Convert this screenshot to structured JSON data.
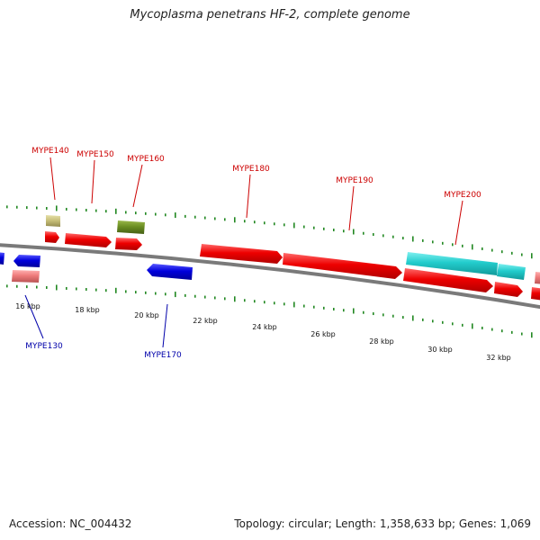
{
  "title": "Mycoplasma penetrans HF-2, complete genome",
  "footer": {
    "accession": "Accession: NC_004432",
    "summary": "Topology: circular; Length: 1,358,633 bp; Genes: 1,069"
  },
  "colors": {
    "backbone": "#7a7a7a",
    "tick": "#228822",
    "red_gene": "#ee0000",
    "blue_gene": "#0000dd",
    "cyan_gene": "#22cccc",
    "pink_gene": "#ee7a7a",
    "khaki_gene": "#c8c07a",
    "olive_gene": "#6b8e23",
    "label_red": "#cc0000",
    "label_blue": "#0000aa"
  },
  "scale_labels": [
    "16 kbp",
    "18 kbp",
    "20 kbp",
    "22 kbp",
    "24 kbp",
    "26 kbp",
    "28 kbp",
    "30 kbp",
    "32 kbp"
  ],
  "gene_labels": [
    {
      "text": "MYPE140",
      "strand": "forward"
    },
    {
      "text": "MYPE150",
      "strand": "forward"
    },
    {
      "text": "MYPE160",
      "strand": "forward"
    },
    {
      "text": "MYPE180",
      "strand": "forward"
    },
    {
      "text": "MYPE190",
      "strand": "forward"
    },
    {
      "text": "MYPE200",
      "strand": "forward"
    },
    {
      "text": "MYPE130",
      "strand": "reverse"
    },
    {
      "text": "MYPE170",
      "strand": "reverse"
    }
  ]
}
